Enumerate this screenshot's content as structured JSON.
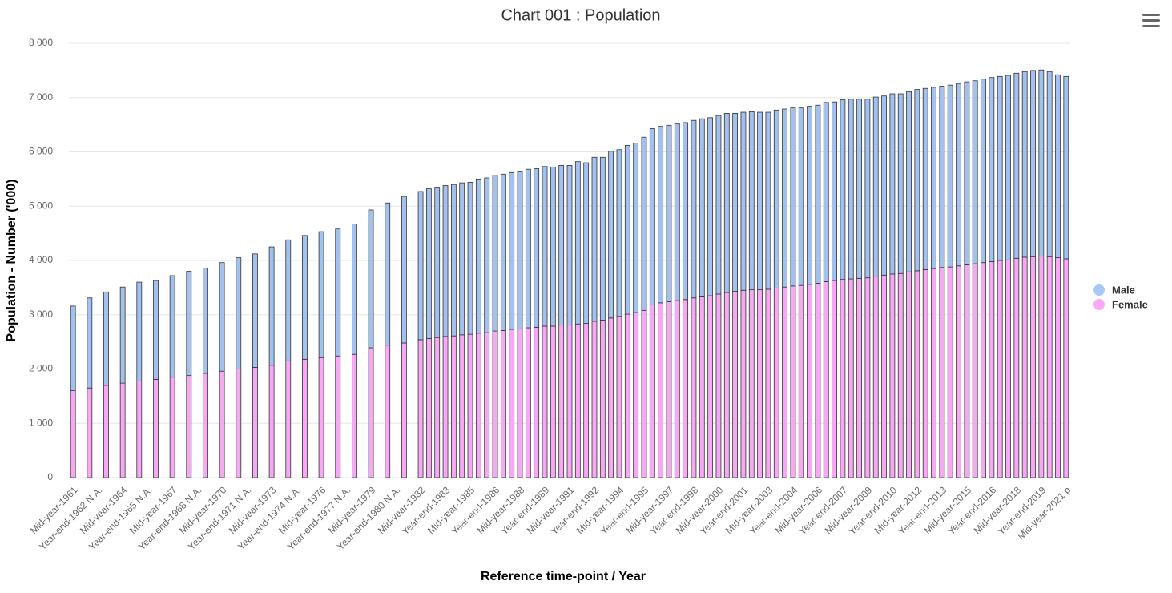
{
  "chart_data": {
    "type": "stacked_bar",
    "title": "Chart 001 : Population",
    "x_label": "Reference time-point / Year",
    "y_label": "Population - Number ('000)",
    "legend": "right",
    "grid": true,
    "ylim": [
      0,
      8000
    ],
    "yticks": [
      0,
      {
        "value": 1000,
        "label": "1 000"
      },
      {
        "value": 2000,
        "label": "2 000"
      },
      {
        "value": 3000,
        "label": "3 000"
      },
      {
        "value": 4000,
        "label": "4 000"
      },
      {
        "value": 5000,
        "label": "5 000"
      },
      {
        "value": 6000,
        "label": "6 000"
      },
      {
        "value": 7000,
        "label": "7 000"
      },
      {
        "value": 8000,
        "label": "8 000"
      }
    ],
    "categories": [
      "Mid-year-1961",
      null,
      null,
      "Year-end-1962 N.A.",
      null,
      null,
      "Mid-year-1964",
      null,
      null,
      "Year-end-1965 N.A.",
      null,
      null,
      "Mid-year-1967",
      null,
      null,
      "Year-end-1968 N.A.",
      null,
      null,
      "Mid-year-1970",
      null,
      null,
      "Year-end-1971 N.A.",
      null,
      null,
      "Mid-year-1973",
      null,
      null,
      "Year-end-1974 N.A.",
      null,
      null,
      "Mid-year-1976",
      null,
      null,
      "Year-end-1977 N.A.",
      null,
      null,
      "Mid-year-1979",
      null,
      null,
      "Year-end-1980 N.A.",
      null,
      null,
      "Mid-year-1982",
      null,
      null,
      "Year-end-1983",
      null,
      null,
      "Mid-year-1985",
      null,
      null,
      "Year-end-1986",
      null,
      null,
      "Mid-year-1988",
      null,
      null,
      "Year-end-1989",
      null,
      null,
      "Mid-year-1991",
      null,
      null,
      "Year-end-1992",
      null,
      null,
      "Mid-year-1994",
      null,
      null,
      "Year-end-1995",
      null,
      null,
      "Mid-year-1997",
      null,
      null,
      "Year-end-1998",
      null,
      null,
      "Mid-year-2000",
      null,
      null,
      "Year-end-2001",
      null,
      null,
      "Mid-year-2003",
      null,
      null,
      "Year-end-2004",
      null,
      null,
      "Mid-year-2006",
      null,
      null,
      "Year-end-2007",
      null,
      null,
      "Mid-year-2009",
      null,
      null,
      "Year-end-2010",
      null,
      null,
      "Mid-year-2012",
      null,
      null,
      "Year-end-2013",
      null,
      null,
      "Mid-year-2015",
      null,
      null,
      "Year-end-2016",
      null,
      null,
      "Mid-year-2018",
      null,
      null,
      "Year-end-2019",
      null,
      null,
      "Mid-year-2021 p"
    ],
    "series": [
      {
        "name": "Male",
        "color": "#a3c1ef",
        "legend_color": "#a9c8f8",
        "values": [
          1560,
          null,
          1660,
          null,
          1720,
          null,
          1770,
          null,
          1820,
          null,
          1820,
          null,
          1870,
          null,
          1920,
          null,
          1940,
          null,
          2000,
          null,
          2050,
          null,
          2090,
          null,
          2180,
          null,
          2230,
          null,
          2280,
          null,
          2320,
          null,
          2340,
          null,
          2400,
          null,
          2540,
          null,
          2620,
          null,
          2700,
          null,
          2730,
          2760,
          2770,
          2780,
          2790,
          2800,
          2800,
          2840,
          2850,
          2870,
          2880,
          2890,
          2890,
          2920,
          2920,
          2940,
          2930,
          2940,
          2940,
          2990,
          2960,
          3020,
          3000,
          3070,
          3070,
          3110,
          3120,
          3190,
          3250,
          3250,
          3250,
          3260,
          3260,
          3270,
          3280,
          3280,
          3290,
          3300,
          3280,
          3280,
          3280,
          3270,
          3260,
          3280,
          3280,
          3280,
          3270,
          3280,
          3280,
          3300,
          3290,
          3310,
          3310,
          3300,
          3290,
          3300,
          3300,
          3320,
          3310,
          3320,
          3340,
          3340,
          3340,
          3340,
          3350,
          3360,
          3370,
          3370,
          3380,
          3390,
          3390,
          3400,
          3410,
          3420,
          3430,
          3430,
          3410,
          3370,
          3360
        ]
      },
      {
        "name": "Female",
        "color": "#f7a8f3",
        "legend_color": "#fba8f7",
        "values": [
          1600,
          null,
          1650,
          null,
          1700,
          null,
          1740,
          null,
          1780,
          null,
          1810,
          null,
          1850,
          null,
          1880,
          null,
          1920,
          null,
          1960,
          null,
          2000,
          null,
          2030,
          null,
          2070,
          null,
          2150,
          null,
          2180,
          null,
          2210,
          null,
          2240,
          null,
          2270,
          null,
          2390,
          null,
          2440,
          null,
          2480,
          null,
          2540,
          2560,
          2580,
          2600,
          2610,
          2630,
          2640,
          2660,
          2670,
          2700,
          2710,
          2730,
          2740,
          2760,
          2770,
          2790,
          2790,
          2810,
          2810,
          2830,
          2840,
          2880,
          2900,
          2940,
          2970,
          3010,
          3040,
          3080,
          3180,
          3220,
          3240,
          3260,
          3280,
          3310,
          3330,
          3350,
          3380,
          3410,
          3430,
          3450,
          3460,
          3460,
          3470,
          3490,
          3510,
          3530,
          3540,
          3560,
          3580,
          3610,
          3630,
          3650,
          3660,
          3670,
          3680,
          3710,
          3730,
          3750,
          3760,
          3790,
          3810,
          3830,
          3850,
          3870,
          3880,
          3900,
          3920,
          3940,
          3960,
          3980,
          4000,
          4010,
          4040,
          4060,
          4070,
          4080,
          4070,
          4050,
          4030
        ]
      }
    ]
  }
}
